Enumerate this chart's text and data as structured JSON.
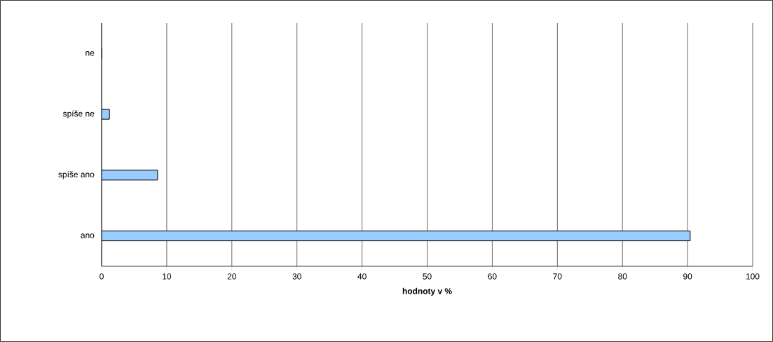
{
  "chart_data": {
    "type": "bar",
    "orientation": "horizontal",
    "xlabel": "hodnoty v %",
    "categories": [
      "ne",
      "spíše ne",
      "spíše ano",
      "ano"
    ],
    "values": [
      0,
      1.2,
      8.6,
      90.4
    ],
    "color": "#99ccff",
    "xlim": [
      0,
      100
    ],
    "xticks": [
      0,
      10,
      20,
      30,
      40,
      50,
      60,
      70,
      80,
      90,
      100
    ],
    "grid": "x"
  }
}
